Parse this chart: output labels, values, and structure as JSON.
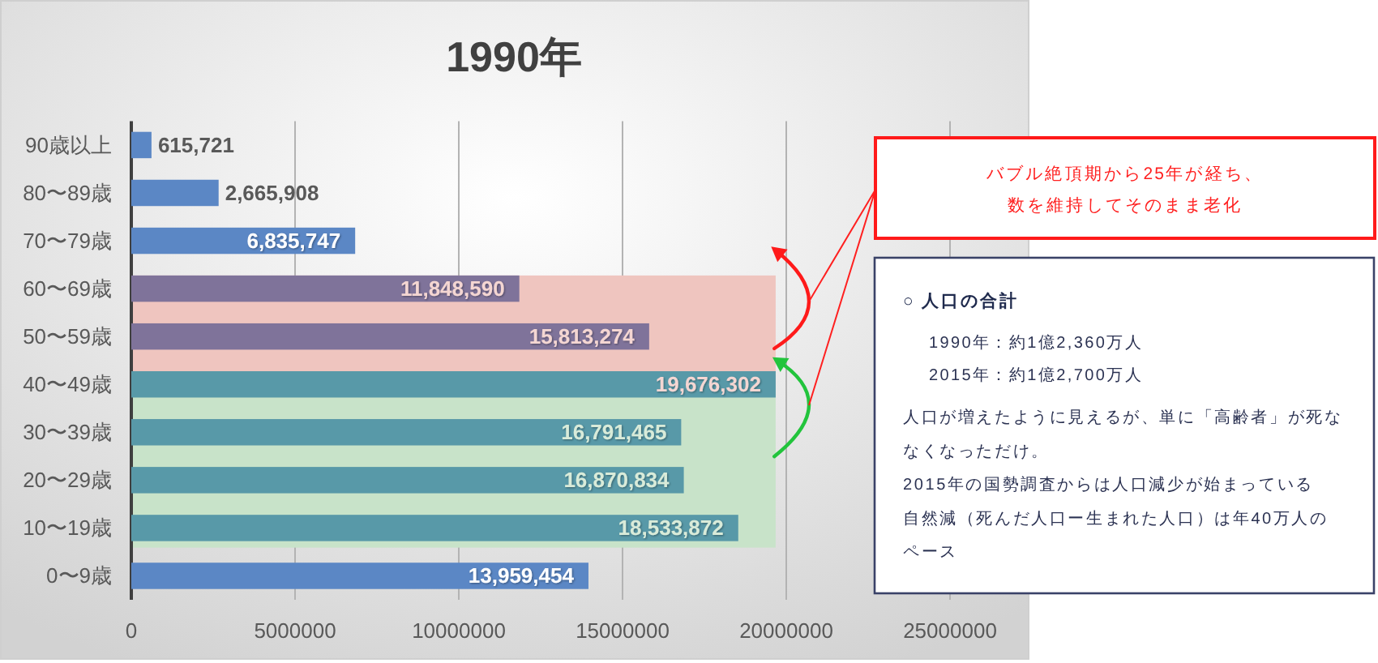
{
  "chart_data": {
    "type": "bar",
    "orientation": "horizontal",
    "title": "1990年",
    "categories": [
      "90歳以上",
      "80〜89歳",
      "70〜79歳",
      "60〜69歳",
      "50〜59歳",
      "40〜49歳",
      "30〜39歳",
      "20〜29歳",
      "10〜19歳",
      "0〜9歳"
    ],
    "values": [
      615721,
      2665908,
      6835747,
      11848590,
      15813274,
      19676302,
      16791465,
      16870834,
      18533872,
      13959454
    ],
    "value_labels": [
      "615,721",
      "2,665,908",
      "6,835,747",
      "11,848,590",
      "15,813,274",
      "19,676,302",
      "16,791,465",
      "16,870,834",
      "18,533,872",
      "13,959,454"
    ],
    "colors": [
      "#5b87c5",
      "#5b87c5",
      "#5b87c5",
      "#7f739a",
      "#7f739a",
      "#5899a8",
      "#5899a8",
      "#5899a8",
      "#5899a8",
      "#5b87c5"
    ],
    "xlim": [
      0,
      25000000
    ],
    "xticks": [
      0,
      5000000,
      10000000,
      15000000,
      20000000,
      25000000
    ],
    "grid": "x",
    "bands": [
      {
        "axis": "y",
        "from": "60〜69歳",
        "to": "40〜49歳",
        "color": "#efc5bf"
      },
      {
        "axis": "y",
        "from": "40〜49歳",
        "to": "10〜19歳",
        "color": "#c8e3c9"
      }
    ],
    "annotations": [
      "バブル絶頂期から25年が経ち、",
      "数を維持してそのまま老化",
      "○ 人口の合計",
      "1990年：約1億2,360万人",
      "2015年：約1億2,700万人",
      "人口が増えたように見えるが、単に「高齢者」が死ななくなっただけ。",
      "2015年の国勢調査からは人口減少が始まっている",
      "自然減（死んだ人口ー生まれた人口）は年40万人のペース"
    ]
  }
}
